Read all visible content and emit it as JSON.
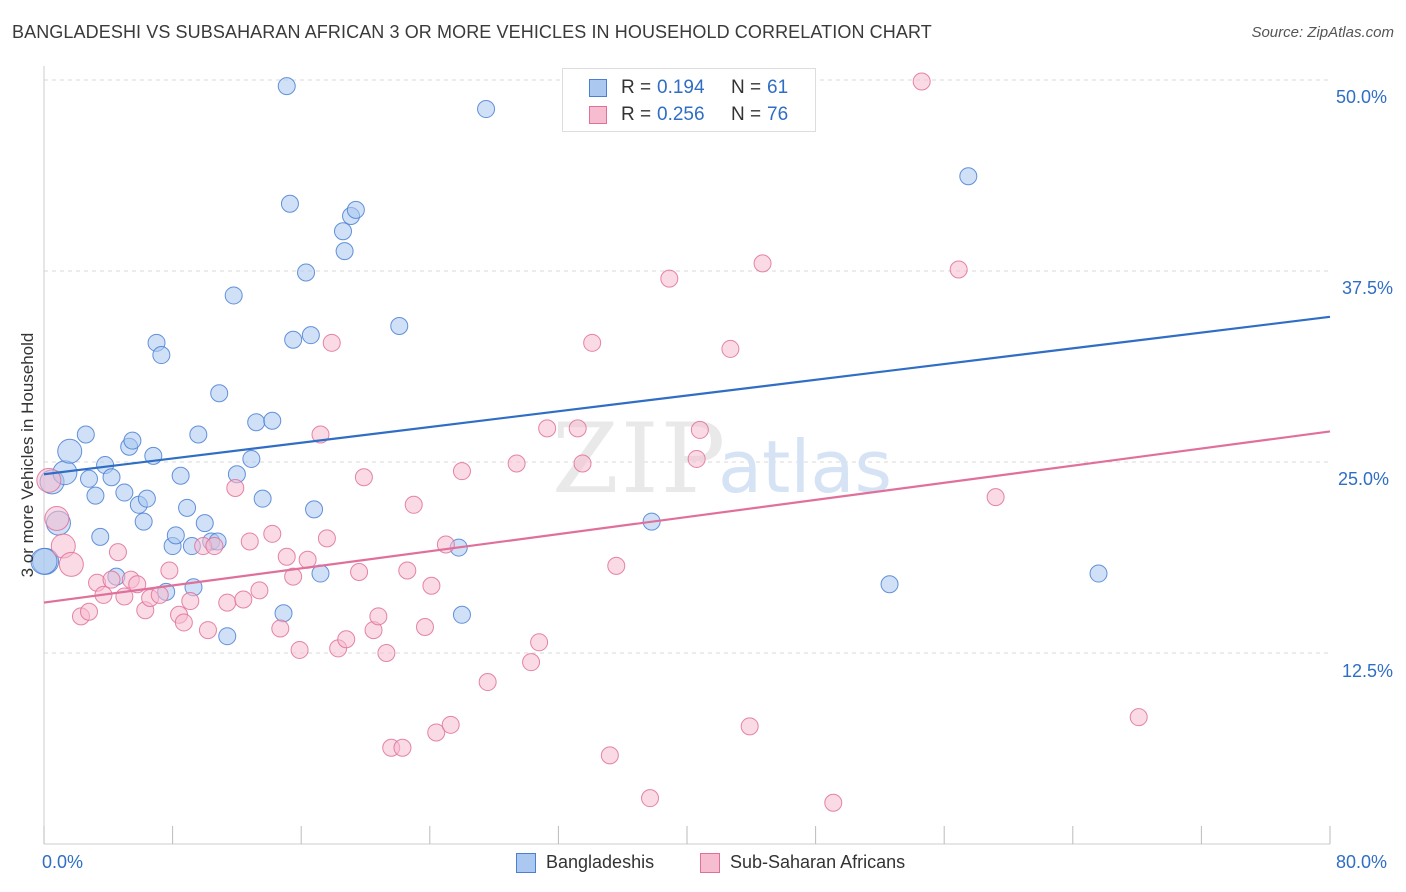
{
  "title": "BANGLADESHI VS SUBSAHARAN AFRICAN 3 OR MORE VEHICLES IN HOUSEHOLD CORRELATION CHART",
  "source": "Source: ZipAtlas.com",
  "watermark": "ZIPatlas",
  "stats": [
    {
      "r_label": "R =",
      "r_value": "0.194",
      "n_label": "N =",
      "n_value": "61",
      "color": "#4a7fd4",
      "fill": "#aac8f0"
    },
    {
      "r_label": "R =",
      "r_value": "0.256",
      "n_label": "N =",
      "n_value": "76",
      "color": "#e0709a",
      "fill": "#f6bcd0"
    }
  ],
  "legend": [
    {
      "label": "Bangladeshis",
      "color": "#4a7fd4",
      "fill": "#aac8f0"
    },
    {
      "label": "Sub-Saharan Africans",
      "color": "#e0709a",
      "fill": "#f6bcd0"
    }
  ],
  "chart_data": {
    "type": "scatter",
    "title": "BANGLADESHI VS SUBSAHARAN AFRICAN 3 OR MORE VEHICLES IN HOUSEHOLD CORRELATION CHART",
    "xlabel": "",
    "ylabel": "3 or more Vehicles in Household",
    "x_tick_labels": [
      "0.0%",
      "80.0%"
    ],
    "y_tick_labels": [
      "50.0%",
      "37.5%",
      "25.0%",
      "12.5%"
    ],
    "y_ticks": [
      50.0,
      37.5,
      25.0,
      12.5
    ],
    "xlim": [
      0,
      80
    ],
    "ylim": [
      0,
      51
    ],
    "grid": true,
    "legend_position": "bottom-center",
    "series": [
      {
        "name": "Bangladeshis",
        "color": "#4a7fd4",
        "fill": "#aac8f0",
        "r": 0.194,
        "n": 61,
        "trend": {
          "x": [
            0,
            80
          ],
          "y": [
            24.2,
            34.5
          ]
        },
        "points": [
          [
            0.1,
            18.5
          ],
          [
            0.5,
            23.7
          ],
          [
            1.3,
            24.3
          ],
          [
            0.9,
            21.0
          ],
          [
            1.6,
            25.7
          ],
          [
            2.6,
            26.8
          ],
          [
            2.8,
            23.9
          ],
          [
            3.2,
            22.8
          ],
          [
            3.5,
            20.1
          ],
          [
            3.8,
            24.8
          ],
          [
            4.2,
            24.0
          ],
          [
            4.5,
            17.5
          ],
          [
            5.0,
            23.0
          ],
          [
            5.3,
            26.0
          ],
          [
            5.5,
            26.4
          ],
          [
            5.9,
            22.2
          ],
          [
            6.2,
            21.1
          ],
          [
            6.4,
            22.6
          ],
          [
            6.8,
            25.4
          ],
          [
            7.0,
            32.8
          ],
          [
            7.3,
            32.0
          ],
          [
            7.6,
            16.5
          ],
          [
            8.0,
            19.5
          ],
          [
            8.2,
            20.2
          ],
          [
            8.5,
            24.1
          ],
          [
            8.9,
            22.0
          ],
          [
            9.3,
            16.8
          ],
          [
            9.6,
            26.8
          ],
          [
            10.0,
            21.0
          ],
          [
            10.4,
            19.8
          ],
          [
            10.8,
            19.8
          ],
          [
            10.9,
            29.5
          ],
          [
            11.4,
            13.6
          ],
          [
            11.8,
            35.9
          ],
          [
            12.0,
            24.2
          ],
          [
            12.9,
            25.2
          ],
          [
            13.2,
            27.6
          ],
          [
            13.6,
            22.6
          ],
          [
            14.2,
            27.7
          ],
          [
            14.9,
            15.1
          ],
          [
            15.5,
            33.0
          ],
          [
            15.1,
            49.6
          ],
          [
            15.3,
            41.9
          ],
          [
            16.3,
            37.4
          ],
          [
            16.6,
            33.3
          ],
          [
            16.8,
            21.9
          ],
          [
            17.2,
            17.7
          ],
          [
            18.6,
            40.1
          ],
          [
            18.7,
            38.8
          ],
          [
            19.1,
            41.1
          ],
          [
            19.4,
            41.5
          ],
          [
            22.1,
            33.9
          ],
          [
            25.8,
            19.4
          ],
          [
            26.0,
            15.0
          ],
          [
            27.5,
            48.1
          ],
          [
            37.8,
            21.1
          ],
          [
            52.6,
            17.0
          ],
          [
            57.5,
            43.7
          ],
          [
            65.6,
            17.7
          ],
          [
            0.0,
            18.5
          ],
          [
            9.2,
            19.5
          ]
        ]
      },
      {
        "name": "Sub-Saharan Africans",
        "color": "#e0709a",
        "fill": "#f6bcd0",
        "r": 0.256,
        "n": 76,
        "trend": {
          "x": [
            0,
            80
          ],
          "y": [
            15.8,
            27.0
          ]
        },
        "points": [
          [
            0.3,
            23.8
          ],
          [
            0.8,
            21.3
          ],
          [
            1.2,
            19.5
          ],
          [
            1.7,
            18.3
          ],
          [
            2.3,
            14.9
          ],
          [
            2.8,
            15.2
          ],
          [
            3.3,
            17.1
          ],
          [
            3.7,
            16.3
          ],
          [
            4.2,
            17.3
          ],
          [
            4.6,
            19.1
          ],
          [
            5.0,
            16.2
          ],
          [
            5.4,
            17.3
          ],
          [
            5.8,
            17.0
          ],
          [
            6.3,
            15.3
          ],
          [
            6.6,
            16.1
          ],
          [
            7.2,
            16.3
          ],
          [
            7.8,
            17.9
          ],
          [
            8.4,
            15.0
          ],
          [
            8.7,
            14.5
          ],
          [
            9.1,
            15.9
          ],
          [
            9.9,
            19.5
          ],
          [
            10.2,
            14.0
          ],
          [
            10.6,
            19.5
          ],
          [
            11.4,
            15.8
          ],
          [
            11.9,
            23.3
          ],
          [
            12.4,
            16.0
          ],
          [
            12.8,
            19.8
          ],
          [
            13.4,
            16.6
          ],
          [
            14.2,
            20.3
          ],
          [
            14.7,
            14.1
          ],
          [
            15.1,
            18.8
          ],
          [
            15.5,
            17.5
          ],
          [
            15.9,
            12.7
          ],
          [
            16.4,
            18.6
          ],
          [
            17.2,
            26.8
          ],
          [
            17.6,
            20.0
          ],
          [
            17.9,
            32.8
          ],
          [
            18.3,
            12.8
          ],
          [
            18.8,
            13.4
          ],
          [
            19.6,
            17.8
          ],
          [
            19.9,
            24.0
          ],
          [
            20.5,
            14.0
          ],
          [
            20.8,
            14.9
          ],
          [
            21.3,
            12.5
          ],
          [
            21.6,
            6.3
          ],
          [
            22.3,
            6.3
          ],
          [
            22.6,
            17.9
          ],
          [
            23.0,
            22.2
          ],
          [
            23.7,
            14.2
          ],
          [
            24.1,
            16.9
          ],
          [
            24.4,
            7.3
          ],
          [
            25.0,
            19.6
          ],
          [
            25.3,
            7.8
          ],
          [
            26.0,
            24.4
          ],
          [
            27.6,
            10.6
          ],
          [
            29.4,
            24.9
          ],
          [
            30.3,
            11.9
          ],
          [
            30.8,
            13.2
          ],
          [
            31.3,
            27.2
          ],
          [
            33.2,
            27.2
          ],
          [
            33.5,
            24.9
          ],
          [
            34.1,
            32.8
          ],
          [
            35.2,
            5.8
          ],
          [
            35.6,
            18.2
          ],
          [
            37.7,
            3.0
          ],
          [
            38.9,
            37.0
          ],
          [
            40.6,
            25.2
          ],
          [
            40.8,
            27.1
          ],
          [
            42.7,
            32.4
          ],
          [
            43.9,
            7.7
          ],
          [
            44.7,
            38.0
          ],
          [
            49.1,
            2.7
          ],
          [
            54.6,
            49.9
          ],
          [
            56.9,
            37.6
          ],
          [
            59.2,
            22.7
          ],
          [
            68.1,
            8.3
          ]
        ]
      }
    ]
  }
}
